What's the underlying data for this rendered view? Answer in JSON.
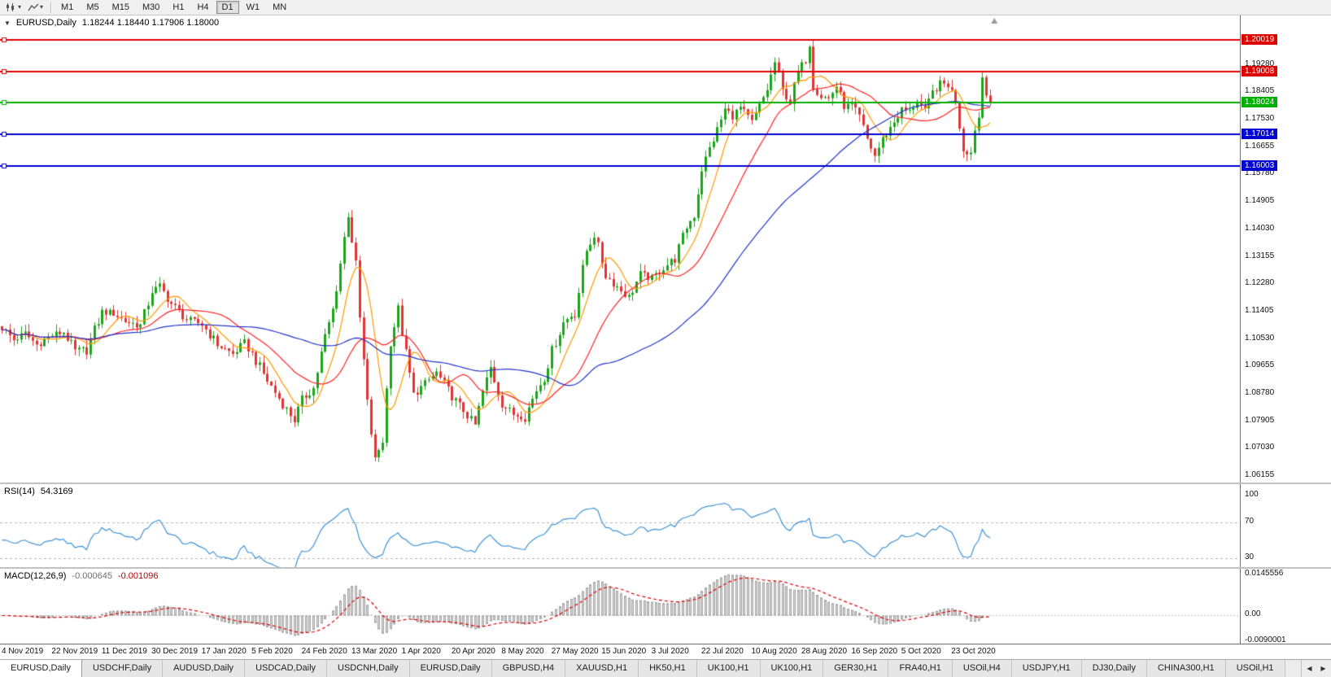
{
  "toolbar": {
    "caret": "▾",
    "timeframes": {
      "options": [
        "M1",
        "M5",
        "M15",
        "M30",
        "H1",
        "H4",
        "D1",
        "W1",
        "MN"
      ],
      "active": "D1"
    }
  },
  "main_chart": {
    "collapse_marker": "▼",
    "symbol": "EURUSD,Daily",
    "ohlc": "1.18244 1.18440 1.17906 1.18000"
  },
  "chart_data": {
    "type": "candlestick",
    "symbol": "EURUSD",
    "timeframe": "Daily",
    "num_candles": 258,
    "visible_fraction": 0.8,
    "y_range": {
      "min": 1.059,
      "max": 1.208
    },
    "y_ticks": [
      "1.19280",
      "1.18405",
      "1.17530",
      "1.16655",
      "1.15780",
      "1.14905",
      "1.14030",
      "1.13155",
      "1.12280",
      "1.11405",
      "1.10530",
      "1.09655",
      "1.08780",
      "1.07905",
      "1.07030",
      "1.06155"
    ],
    "x_labels": [
      "4 Nov 2019",
      "22 Nov 2019",
      "11 Dec 2019",
      "30 Dec 2019",
      "17 Jan 2020",
      "5 Feb 2020",
      "24 Feb 2020",
      "13 Mar 2020",
      "1 Apr 2020",
      "20 Apr 2020",
      "8 May 2020",
      "27 May 2020",
      "15 Jun 2020",
      "3 Jul 2020",
      "22 Jul 2020",
      "10 Aug 2020",
      "28 Aug 2020",
      "16 Sep 2020",
      "5 Oct 2020",
      "23 Oct 2020"
    ],
    "x_label_indices": [
      0,
      13,
      26,
      39,
      52,
      65,
      78,
      91,
      104,
      117,
      130,
      143,
      156,
      169,
      182,
      195,
      208,
      221,
      234,
      247
    ],
    "last_candle": {
      "open": 1.18244,
      "high": 1.1844,
      "low": 1.17906,
      "close": 1.18
    },
    "close_anchors": [
      [
        0,
        1.1085
      ],
      [
        3,
        1.1045
      ],
      [
        6,
        1.1065
      ],
      [
        9,
        1.103
      ],
      [
        13,
        1.106
      ],
      [
        16,
        1.107
      ],
      [
        19,
        1.101
      ],
      [
        22,
        1.1015
      ],
      [
        26,
        1.1135
      ],
      [
        29,
        1.113
      ],
      [
        32,
        1.1105
      ],
      [
        36,
        1.109
      ],
      [
        39,
        1.12
      ],
      [
        41,
        1.1215
      ],
      [
        44,
        1.116
      ],
      [
        48,
        1.111
      ],
      [
        52,
        1.1095
      ],
      [
        56,
        1.103
      ],
      [
        60,
        1.1
      ],
      [
        63,
        1.1035
      ],
      [
        65,
        1.1
      ],
      [
        69,
        1.0915
      ],
      [
        73,
        1.084
      ],
      [
        76,
        1.079
      ],
      [
        78,
        1.0855
      ],
      [
        81,
        1.089
      ],
      [
        84,
        1.1055
      ],
      [
        86,
        1.114
      ],
      [
        88,
        1.129
      ],
      [
        90,
        1.145
      ],
      [
        92,
        1.128
      ],
      [
        93,
        1.111
      ],
      [
        95,
        1.084
      ],
      [
        97,
        1.066
      ],
      [
        99,
        1.073
      ],
      [
        101,
        1.104
      ],
      [
        103,
        1.114
      ],
      [
        105,
        1.1
      ],
      [
        107,
        1.087
      ],
      [
        110,
        1.0905
      ],
      [
        113,
        1.094
      ],
      [
        117,
        1.0865
      ],
      [
        120,
        1.082
      ],
      [
        123,
        1.0772
      ],
      [
        125,
        1.088
      ],
      [
        127,
        1.0955
      ],
      [
        130,
        1.084
      ],
      [
        133,
        1.0808
      ],
      [
        136,
        1.08
      ],
      [
        139,
        1.0885
      ],
      [
        141,
        1.0925
      ],
      [
        143,
        1.101
      ],
      [
        146,
        1.11
      ],
      [
        149,
        1.1135
      ],
      [
        152,
        1.133
      ],
      [
        154,
        1.1383
      ],
      [
        157,
        1.125
      ],
      [
        160,
        1.1215
      ],
      [
        163,
        1.118
      ],
      [
        166,
        1.1255
      ],
      [
        169,
        1.124
      ],
      [
        172,
        1.1275
      ],
      [
        175,
        1.1305
      ],
      [
        178,
        1.1405
      ],
      [
        180,
        1.1445
      ],
      [
        182,
        1.159
      ],
      [
        184,
        1.1655
      ],
      [
        186,
        1.1715
      ],
      [
        188,
        1.178
      ],
      [
        190,
        1.176
      ],
      [
        192,
        1.1785
      ],
      [
        195,
        1.1738
      ],
      [
        197,
        1.179
      ],
      [
        199,
        1.1845
      ],
      [
        201,
        1.193
      ],
      [
        203,
        1.184
      ],
      [
        205,
        1.1805
      ],
      [
        207,
        1.19
      ],
      [
        209,
        1.194
      ],
      [
        210,
        1.1995
      ],
      [
        211,
        1.1855
      ],
      [
        213,
        1.1822
      ],
      [
        215,
        1.1815
      ],
      [
        217,
        1.1855
      ],
      [
        219,
        1.179
      ],
      [
        221,
        1.1792
      ],
      [
        223,
        1.1755
      ],
      [
        225,
        1.1685
      ],
      [
        227,
        1.1632
      ],
      [
        229,
        1.1685
      ],
      [
        231,
        1.1722
      ],
      [
        234,
        1.178
      ],
      [
        236,
        1.1772
      ],
      [
        238,
        1.1812
      ],
      [
        240,
        1.177
      ],
      [
        242,
        1.1835
      ],
      [
        244,
        1.1862
      ],
      [
        246,
        1.186
      ],
      [
        248,
        1.1812
      ],
      [
        250,
        1.1652
      ],
      [
        252,
        1.1642
      ],
      [
        253,
        1.172
      ],
      [
        254,
        1.1755
      ],
      [
        255,
        1.1885
      ],
      [
        256,
        1.18244
      ],
      [
        257,
        1.18
      ]
    ],
    "candle_up_color": "#1ca41c",
    "candle_down_color": "#e03434",
    "moving_averages": [
      {
        "period": 8,
        "type": "sma",
        "color": "#ff9900"
      },
      {
        "period": 21,
        "type": "sma",
        "color": "#ff2222"
      },
      {
        "period": 55,
        "type": "sma",
        "color": "#2233cc"
      }
    ],
    "horizontal_lines": [
      {
        "price": 1.20019,
        "label": "1.20019",
        "color": "#e00000",
        "width": 2
      },
      {
        "price": 1.19008,
        "label": "1.19008",
        "color": "#e00000",
        "width": 2
      },
      {
        "price": 1.18024,
        "label": "1.18024",
        "color": "#00b000",
        "width": 2
      },
      {
        "price": 1.17014,
        "label": "1.17014",
        "color": "#0000d0",
        "width": 2
      },
      {
        "price": 1.16003,
        "label": "1.16003",
        "color": "#0000d0",
        "width": 2
      }
    ],
    "rsi": {
      "name": "RSI(14)",
      "value": "54.3169",
      "period": 14,
      "color": "#3f93d6",
      "levels": [
        70,
        30
      ],
      "scale_labels": [
        "100",
        "70",
        "30"
      ],
      "scale_values": [
        100,
        70,
        30
      ],
      "axis_range": {
        "min": 18,
        "max": 111
      }
    },
    "macd": {
      "name": "MACD(12,26,9)",
      "value_main": "-0.000645",
      "value_signal": "-0.001096",
      "fast": 12,
      "slow": 26,
      "signal_period": 9,
      "hist_fill": "#d8d8d8",
      "hist_stroke": "#a4a4a4",
      "signal_color": "#e00000",
      "scale_labels": [
        "0.0145556",
        "0.00",
        "-0.0090001"
      ],
      "scale_values": [
        0.0145556,
        0,
        -0.0090001
      ],
      "axis_range": {
        "min": -0.0104,
        "max": 0.0158
      }
    }
  },
  "tabs": {
    "scroll_left": "◀",
    "scroll_right": "▶",
    "items": [
      {
        "label": "EURUSD,Daily",
        "active": true
      },
      {
        "label": "USDCHF,Daily",
        "active": false
      },
      {
        "label": "AUDUSD,Daily",
        "active": false
      },
      {
        "label": "USDCAD,Daily",
        "active": false
      },
      {
        "label": "USDCNH,Daily",
        "active": false
      },
      {
        "label": "EURUSD,Daily",
        "active": false
      },
      {
        "label": "GBPUSD,H4",
        "active": false
      },
      {
        "label": "XAUUSD,H1",
        "active": false
      },
      {
        "label": "HK50,H1",
        "active": false
      },
      {
        "label": "UK100,H1",
        "active": false
      },
      {
        "label": "UK100,H1",
        "active": false
      },
      {
        "label": "GER30,H1",
        "active": false
      },
      {
        "label": "FRA40,H1",
        "active": false
      },
      {
        "label": "USOil,H4",
        "active": false
      },
      {
        "label": "USDJPY,H1",
        "active": false
      },
      {
        "label": "DJ30,Daily",
        "active": false
      },
      {
        "label": "CHINA300,H1",
        "active": false
      },
      {
        "label": "USOil,H1",
        "active": false
      }
    ]
  }
}
